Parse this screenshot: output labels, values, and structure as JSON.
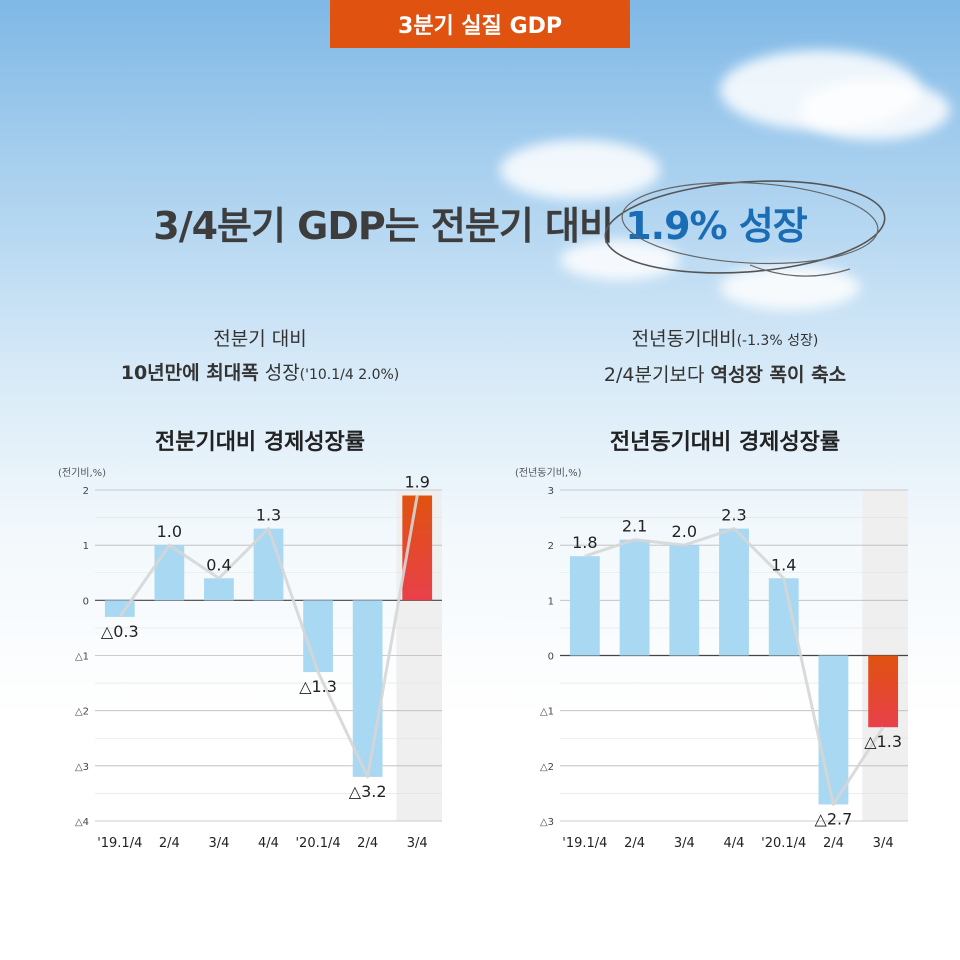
{
  "header": {
    "tag": "3분기 실질 GDP"
  },
  "headline": {
    "main": "3/4분기 GDP는 전분기 대비 ",
    "highlight": "1.9% 성장"
  },
  "left_note": {
    "line1": "전분기 대비",
    "line2_bold": "10년만에 최대폭",
    "line2_rest": " 성장",
    "line2_small": "('10.1/4 2.0%)"
  },
  "right_note": {
    "line1": "전년동기대비",
    "line1_small": "(-1.3% 성장)",
    "line2_rest": "2/4분기보다 ",
    "line2_bold": "역성장 폭이 축소"
  },
  "colors": {
    "accent": "#e0520f",
    "highlight": "#1a6cb5",
    "bar": "#a9d8f3",
    "bar_last_top": "#e0520f",
    "bar_last_bottom": "#e8404a"
  },
  "chart_data": [
    {
      "type": "bar",
      "title": "전분기대비 경제성장률",
      "ylabel": "(전기비,%)",
      "categories": [
        "'19.1/4",
        "2/4",
        "3/4",
        "4/4",
        "'20.1/4",
        "2/4",
        "3/4"
      ],
      "values": [
        -0.3,
        1.0,
        0.4,
        1.3,
        -1.3,
        -3.2,
        1.9
      ],
      "value_labels": [
        "△0.3",
        "1.0",
        "0.4",
        "1.3",
        "△1.3",
        "△3.2",
        "1.9"
      ],
      "ylim": [
        -4,
        2
      ],
      "yticks": [
        2,
        1,
        0,
        -1,
        -2,
        -3,
        -4
      ],
      "ytick_labels": [
        "2",
        "1",
        "0",
        "△1",
        "△2",
        "△3",
        "△4"
      ],
      "highlight_last": true,
      "grid": true
    },
    {
      "type": "bar",
      "title": "전년동기대비 경제성장률",
      "ylabel": "(전년동기비,%)",
      "categories": [
        "'19.1/4",
        "2/4",
        "3/4",
        "4/4",
        "'20.1/4",
        "2/4",
        "3/4"
      ],
      "values": [
        1.8,
        2.1,
        2.0,
        2.3,
        1.4,
        -2.7,
        -1.3
      ],
      "value_labels": [
        "1.8",
        "2.1",
        "2.0",
        "2.3",
        "1.4",
        "△2.7",
        "△1.3"
      ],
      "ylim": [
        -3,
        3
      ],
      "yticks": [
        3,
        2,
        1,
        0,
        -1,
        -2,
        -3
      ],
      "ytick_labels": [
        "3",
        "2",
        "1",
        "0",
        "△1",
        "△2",
        "△3"
      ],
      "highlight_last": true,
      "grid": true
    }
  ]
}
